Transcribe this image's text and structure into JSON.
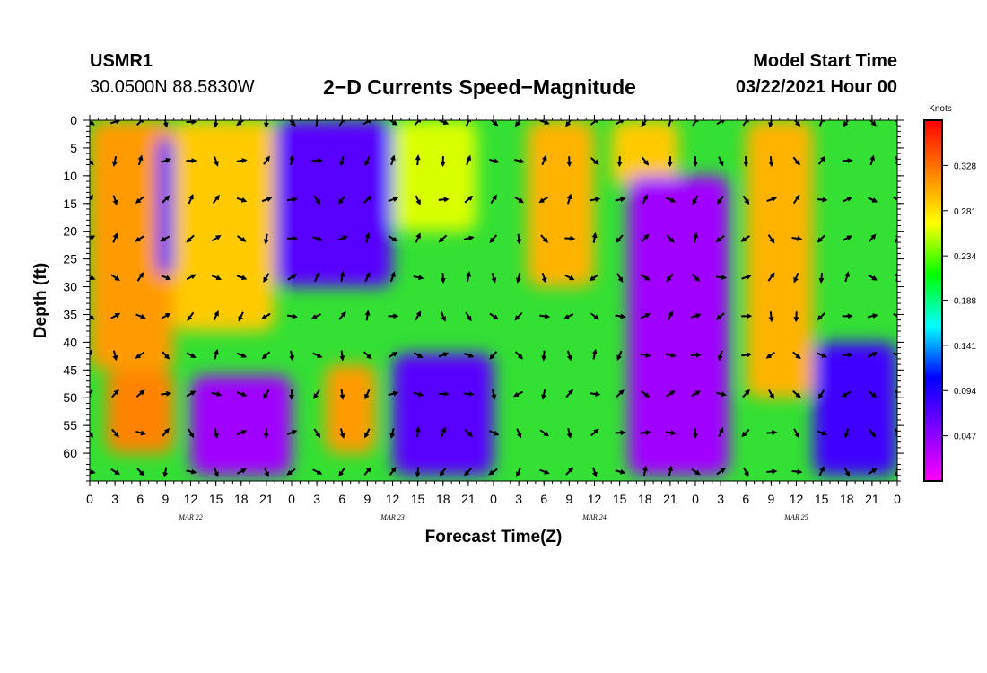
{
  "header": {
    "station": "USMR1",
    "coordinates": "30.0500N 88.5830W",
    "title": "2−D Currents Speed−Magnitude",
    "model_start_label": "Model Start Time",
    "model_start_value": "03/22/2021 Hour 00"
  },
  "chart_data": {
    "type": "heatmap",
    "title": "2−D Currents Speed−Magnitude",
    "xlabel": "Forecast Time(Z)",
    "ylabel": "Depth (ft)",
    "x_tick_labels": [
      "0",
      "3",
      "6",
      "9",
      "12",
      "15",
      "18",
      "21",
      "0",
      "3",
      "6",
      "9",
      "12",
      "15",
      "18",
      "21",
      "0",
      "3",
      "6",
      "9",
      "12",
      "15",
      "18",
      "21",
      "0",
      "3",
      "6",
      "9",
      "12",
      "15",
      "18",
      "21",
      "0"
    ],
    "x_range_hours": [
      0,
      96
    ],
    "date_labels": [
      {
        "label": "MAR 22",
        "hour": 12
      },
      {
        "label": "MAR 23",
        "hour": 36
      },
      {
        "label": "MAR 24",
        "hour": 60
      },
      {
        "label": "MAR 25",
        "hour": 84
      }
    ],
    "y_tick_labels": [
      "0",
      "5",
      "10",
      "15",
      "20",
      "25",
      "30",
      "35",
      "40",
      "45",
      "50",
      "55",
      "60"
    ],
    "y_range_ft": [
      0,
      65
    ],
    "y_inverted": true,
    "colorbar": {
      "unit_label": "Knots",
      "tick_labels": [
        "0.047",
        "0.094",
        "0.141",
        "0.188",
        "0.234",
        "0.281",
        "0.328"
      ],
      "range": [
        0.0,
        0.375
      ],
      "colormap": [
        "#ff00ff",
        "#8000ff",
        "#0000ff",
        "#00ffff",
        "#00ff00",
        "#ffff00",
        "#ff8000",
        "#ff0000"
      ]
    },
    "speed_regions_approx": [
      {
        "hours": [
          0,
          10
        ],
        "depth_ft": [
          0,
          45
        ],
        "speed_knots": 0.31
      },
      {
        "hours": [
          2,
          10
        ],
        "depth_ft": [
          45,
          60
        ],
        "speed_knots": 0.32
      },
      {
        "hours": [
          8,
          10
        ],
        "depth_ft": [
          3,
          28
        ],
        "speed_knots": 0.08
      },
      {
        "hours": [
          10,
          22
        ],
        "depth_ft": [
          0,
          38
        ],
        "speed_knots": 0.29
      },
      {
        "hours": [
          12,
          24
        ],
        "depth_ft": [
          46,
          64
        ],
        "speed_knots": 0.04
      },
      {
        "hours": [
          22,
          36
        ],
        "depth_ft": [
          0,
          30
        ],
        "speed_knots": 0.07
      },
      {
        "hours": [
          28,
          34
        ],
        "depth_ft": [
          44,
          60
        ],
        "speed_knots": 0.31
      },
      {
        "hours": [
          36,
          46
        ],
        "depth_ft": [
          0,
          20
        ],
        "speed_knots": 0.26
      },
      {
        "hours": [
          36,
          48
        ],
        "depth_ft": [
          42,
          64
        ],
        "speed_knots": 0.07
      },
      {
        "hours": [
          52,
          60
        ],
        "depth_ft": [
          0,
          30
        ],
        "speed_knots": 0.3
      },
      {
        "hours": [
          62,
          70
        ],
        "depth_ft": [
          0,
          12
        ],
        "speed_knots": 0.29
      },
      {
        "hours": [
          64,
          76
        ],
        "depth_ft": [
          10,
          64
        ],
        "speed_knots": 0.04
      },
      {
        "hours": [
          78,
          86
        ],
        "depth_ft": [
          0,
          50
        ],
        "speed_knots": 0.3
      },
      {
        "hours": [
          86,
          96
        ],
        "depth_ft": [
          40,
          64
        ],
        "speed_knots": 0.08
      }
    ],
    "arrows": "current direction vectors at each 3-hour / ~7 ft grid node"
  }
}
